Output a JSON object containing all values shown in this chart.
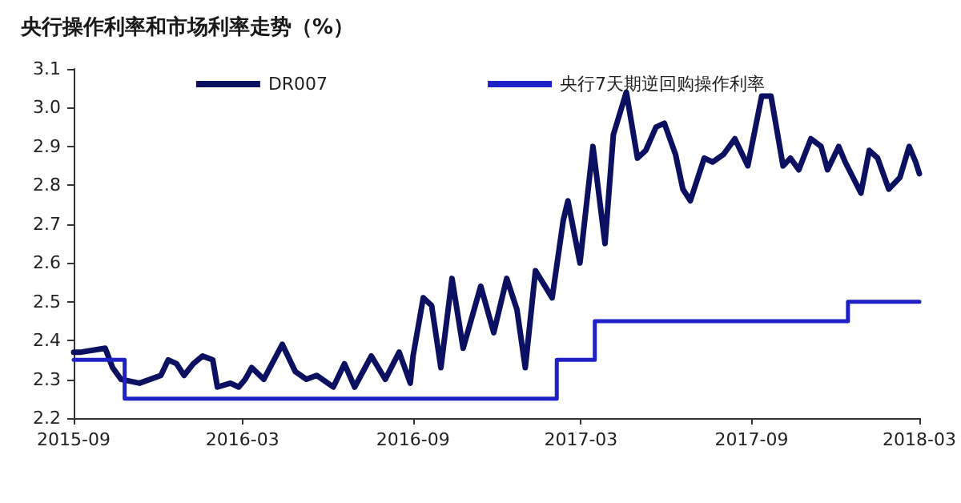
{
  "chart_data": {
    "type": "line",
    "title": "央行操作利率和市场利率走势（%）",
    "series": [
      {
        "name": "DR007",
        "color": "#0b1060",
        "x": [
          "2015-09-01",
          "2015-09-09",
          "2015-10-05",
          "2015-10-13",
          "2015-10-22",
          "2015-11-11",
          "2015-12-04",
          "2015-12-12",
          "2015-12-21",
          "2015-12-29",
          "2016-01-08",
          "2016-01-18",
          "2016-01-29",
          "2016-02-03",
          "2016-02-17",
          "2016-02-26",
          "2016-03-04",
          "2016-03-11",
          "2016-03-24",
          "2016-04-13",
          "2016-04-27",
          "2016-05-09",
          "2016-05-20",
          "2016-06-07",
          "2016-06-19",
          "2016-06-30",
          "2016-07-18",
          "2016-08-02",
          "2016-08-17",
          "2016-08-29",
          "2016-09-01",
          "2016-09-12",
          "2016-09-21",
          "2016-10-01",
          "2016-10-13",
          "2016-10-25",
          "2016-11-13",
          "2016-11-27",
          "2016-12-11",
          "2016-12-22",
          "2016-12-31",
          "2017-01-11",
          "2017-01-29",
          "2017-02-10",
          "2017-02-15",
          "2017-02-28",
          "2017-03-14",
          "2017-03-27",
          "2017-04-05",
          "2017-04-19",
          "2017-05-01",
          "2017-05-10",
          "2017-05-21",
          "2017-05-30",
          "2017-06-11",
          "2017-06-19",
          "2017-06-27",
          "2017-07-12",
          "2017-07-21",
          "2017-08-02",
          "2017-08-14",
          "2017-08-28",
          "2017-09-12",
          "2017-09-22",
          "2017-10-05",
          "2017-10-13",
          "2017-10-22",
          "2017-11-04",
          "2017-11-15",
          "2017-11-22",
          "2017-12-04",
          "2017-12-11",
          "2017-12-28",
          "2018-01-06",
          "2018-01-15",
          "2018-01-27",
          "2018-02-08",
          "2018-02-18",
          "2018-02-25",
          "2018-03-01"
        ],
        "values": [
          2.37,
          2.37,
          2.38,
          2.33,
          2.3,
          2.29,
          2.31,
          2.35,
          2.34,
          2.31,
          2.34,
          2.36,
          2.35,
          2.28,
          2.29,
          2.28,
          2.3,
          2.33,
          2.3,
          2.39,
          2.32,
          2.3,
          2.31,
          2.28,
          2.34,
          2.28,
          2.36,
          2.3,
          2.37,
          2.29,
          2.36,
          2.51,
          2.49,
          2.33,
          2.56,
          2.38,
          2.54,
          2.42,
          2.56,
          2.48,
          2.33,
          2.58,
          2.51,
          2.71,
          2.76,
          2.6,
          2.9,
          2.65,
          2.93,
          3.04,
          2.87,
          2.89,
          2.95,
          2.96,
          2.88,
          2.79,
          2.76,
          2.87,
          2.86,
          2.88,
          2.92,
          2.85,
          3.03,
          3.03,
          2.85,
          2.87,
          2.84,
          2.92,
          2.9,
          2.84,
          2.9,
          2.86,
          2.78,
          2.89,
          2.87,
          2.79,
          2.82,
          2.9,
          2.86,
          2.83
        ]
      },
      {
        "name": "央行7天期逆回购操作利率",
        "color": "#1e22c4",
        "type": "step",
        "x": [
          "2015-09-01",
          "2015-10-26",
          "2017-02-03",
          "2017-03-16",
          "2017-12-14",
          "2018-03-01"
        ],
        "values": [
          2.35,
          2.25,
          2.35,
          2.45,
          2.5,
          2.5
        ]
      }
    ],
    "xlim": [
      "2015-09-01",
      "2018-03-01"
    ],
    "xticks": [
      "2015-09",
      "2016-03",
      "2016-09",
      "2017-03",
      "2017-09",
      "2018-03"
    ],
    "ylim": [
      2.2,
      3.1
    ],
    "yticks": [
      2.2,
      2.3,
      2.4,
      2.5,
      2.6,
      2.7,
      2.8,
      2.9,
      {
        "value": 3,
        "label": "3.0"
      },
      3.1
    ],
    "grid": false,
    "legend": "top",
    "marker": "none",
    "line_style": "solid"
  }
}
